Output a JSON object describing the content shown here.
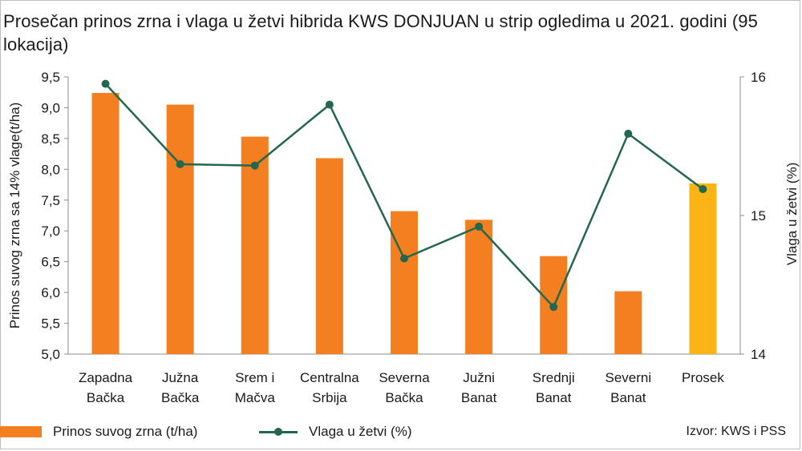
{
  "title": "Prosečan prinos zrna i vlaga u žetvi hibrida KWS DONJUAN u strip ogledima u 2021. godini (95 lokacija)",
  "source": "Izvor: KWS i PSS",
  "colors": {
    "bar": "#f47f20",
    "bar_highlight": "#fbb415",
    "line": "#23684e",
    "axis": "#8c8c8c"
  },
  "legend": {
    "bar_label": "Prinos suvog zrna (t/ha)",
    "line_label": "Vlaga u žetvi (%)"
  },
  "chart_data": {
    "type": "bar",
    "title": "Prosečan prinos zrna i vlaga u žetvi hibrida KWS DONJUAN u strip ogledima u 2021. godini (95 lokacija)",
    "categories": [
      [
        "Zapadna",
        "Bačka"
      ],
      [
        "Južna",
        "Bačka"
      ],
      [
        "Srem i",
        "Mačva"
      ],
      [
        "Centralna",
        "Srbija"
      ],
      [
        "Severna",
        "Bačka"
      ],
      [
        "Južni",
        "Banat"
      ],
      [
        "Srednji",
        "Banat"
      ],
      [
        "Severni",
        "Banat"
      ],
      [
        "Prosek"
      ]
    ],
    "highlight_index": 8,
    "series": [
      {
        "name": "Prinos suvog zrna (t/ha)",
        "type": "bar",
        "axis": "left",
        "values": [
          9.24,
          9.05,
          8.53,
          8.18,
          7.32,
          7.18,
          6.59,
          6.02,
          7.77
        ]
      },
      {
        "name": "Vlaga u žetvi (%)",
        "type": "line",
        "axis": "right",
        "values": [
          15.95,
          15.37,
          15.36,
          15.8,
          14.69,
          14.92,
          14.34,
          15.59,
          15.19
        ]
      }
    ],
    "ylabel": "Prinos suvog zrna sa 14% vlage(t/ha)",
    "y2label": "Vlaga u žetvi (%)",
    "ylim": [
      5.0,
      9.5
    ],
    "y2lim": [
      14,
      16
    ],
    "yticks": [
      "5,0",
      "5,5",
      "6,0",
      "6,5",
      "7,0",
      "7,5",
      "8,0",
      "8,5",
      "9,0",
      "9,5"
    ],
    "y2ticks": [
      "14",
      "15",
      "16"
    ],
    "grid": false
  }
}
